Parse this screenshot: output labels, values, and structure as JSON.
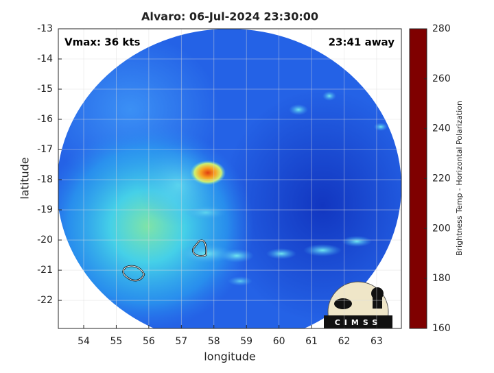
{
  "chart_data": {
    "type": "map",
    "title": "Alvaro: 06-Jul-2024 23:30:00",
    "annotations": [
      "Vmax: 36 kts",
      "23:41 away"
    ],
    "xlabel": "longitude",
    "ylabel": "latitude",
    "xlim": [
      53.22,
      63.76
    ],
    "ylim": [
      -22.93,
      -13
    ],
    "xticks": [
      54,
      55,
      56,
      57,
      58,
      59,
      60,
      61,
      62,
      63
    ],
    "yticks": [
      -13,
      -14,
      -15,
      -16,
      -17,
      -18,
      -19,
      -20,
      -21,
      -22
    ],
    "grid": true,
    "colorbar": {
      "label": "Brightness Temp - Horizontal Polarization",
      "lim": [
        160,
        280
      ],
      "ticks": [
        160,
        180,
        200,
        220,
        240,
        260,
        280
      ],
      "colormap": "jet"
    },
    "logo": "CIMSS"
  }
}
